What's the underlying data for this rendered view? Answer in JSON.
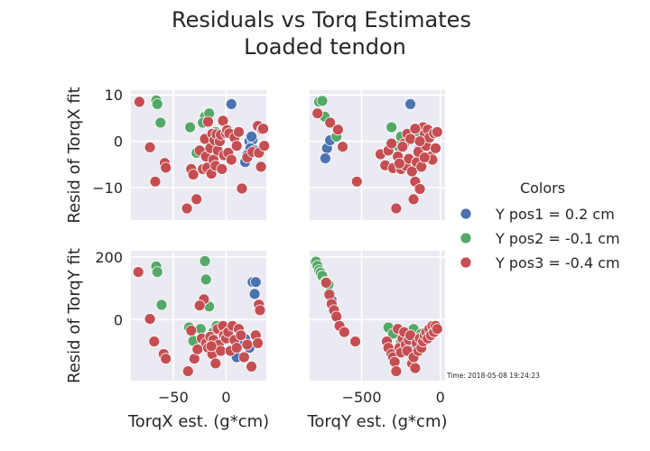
{
  "title_line1": "Residuals vs Torq Estimates",
  "title_line2": "Loaded tendon",
  "timestamp": "Time: 2018-05-08 19:24:23",
  "legend": {
    "title": "Colors",
    "placement": "right"
  },
  "style": {
    "background": "#EAEAF2",
    "grid": "#ffffff",
    "grid_on": true
  },
  "chart_data": [
    {
      "type": "scatter",
      "panel": "top-left",
      "xlabel": "",
      "ylabel": "Resid of TorqX fit",
      "xlim": [
        -90,
        38
      ],
      "ylim": [
        -17,
        11
      ],
      "xticks": [
        -50,
        0
      ],
      "yticks": [
        -10,
        0,
        10
      ],
      "series": [
        {
          "name": "Y pos1 = 0.2 cm",
          "color": "#4C72B0",
          "x": [
            5,
            22,
            25,
            23,
            18,
            20,
            27,
            24
          ],
          "y": [
            8,
            0,
            0.3,
            -1.5,
            -4.5,
            -3,
            -2,
            1
          ]
        },
        {
          "name": "Y pos2 = -0.1 cm",
          "color": "#55A868",
          "x": [
            -66,
            -65,
            -62,
            -20,
            -16,
            -34,
            -28,
            -14,
            -13,
            -10,
            -8,
            -22
          ],
          "y": [
            8.8,
            8,
            4,
            5.3,
            6,
            3,
            -2.5,
            1,
            -1,
            2,
            0,
            4
          ]
        },
        {
          "name": "Y pos3 = -0.4 cm",
          "color": "#C44E52",
          "x": [
            -82,
            -72,
            -67,
            -58,
            -57,
            -37,
            -33,
            -31,
            -28,
            -25,
            -22,
            -20,
            -19,
            -18,
            -17,
            -15,
            -14,
            -13,
            -12,
            -11,
            -10,
            -9,
            -8,
            -6,
            -5,
            -4,
            -3,
            -2,
            0,
            1,
            2,
            3,
            5,
            8,
            10,
            12,
            15,
            20,
            25,
            30,
            31,
            33,
            34,
            35,
            36
          ],
          "y": [
            8.5,
            -1.3,
            -8.7,
            -4.7,
            -5.7,
            -14.5,
            -6,
            -7.2,
            -12.5,
            -2,
            -6,
            0.5,
            -3.3,
            -5.7,
            4.2,
            -1.5,
            -7,
            1.6,
            -4,
            0.2,
            -5.3,
            1.5,
            -2,
            0,
            1.4,
            -6,
            4.4,
            -3,
            1.7,
            2.4,
            -2.5,
            1.7,
            -4,
            0.8,
            -1,
            2,
            -10.2,
            -3.5,
            -2.3,
            3.3,
            -2.5,
            -5.5,
            2.5,
            2.7,
            -1
          ]
        }
      ]
    },
    {
      "type": "scatter",
      "panel": "top-right",
      "xlabel": "",
      "ylabel": "",
      "xlim": [
        -830,
        30
      ],
      "ylim": [
        -17,
        11
      ],
      "xticks": [
        -500,
        0
      ],
      "yticks": [
        -10,
        0,
        10
      ],
      "series": [
        {
          "name": "Y pos1 = 0.2 cm",
          "color": "#4C72B0",
          "x": [
            -190,
            -720,
            -730,
            -700,
            -230,
            -100,
            -140
          ],
          "y": [
            8,
            -1.5,
            -3.7,
            0.2,
            0.3,
            0.5,
            -2
          ]
        },
        {
          "name": "Y pos2 = -0.1 cm",
          "color": "#55A868",
          "x": [
            -770,
            -750,
            -735,
            -660,
            -310,
            -120,
            -80,
            -190,
            -270,
            -330,
            -150,
            -250
          ],
          "y": [
            8.5,
            8.7,
            5.3,
            1,
            3,
            3,
            2.5,
            0.3,
            -1,
            -2,
            2.2,
            1
          ]
        },
        {
          "name": "Y pos3 = -0.4 cm",
          "color": "#C44E52",
          "x": [
            -780,
            -700,
            -650,
            -620,
            -530,
            -380,
            -350,
            -330,
            -300,
            -280,
            -270,
            -250,
            -230,
            -220,
            -210,
            -200,
            -190,
            -180,
            -170,
            -160,
            -150,
            -140,
            -130,
            -120,
            -110,
            -100,
            -90,
            -80,
            -70,
            -60,
            -50,
            -40,
            -30,
            -20,
            -310,
            -260,
            -240,
            -160,
            -130,
            -100
          ],
          "y": [
            6,
            4,
            2.5,
            -1.2,
            -8.7,
            -2.8,
            -5.2,
            -2,
            -5.8,
            -14.5,
            -3.3,
            -6,
            -0.5,
            -5.3,
            1.6,
            -3.8,
            0.5,
            -6.5,
            -12.5,
            -8.7,
            -4.5,
            -2.3,
            -10.3,
            -5.5,
            3,
            1.5,
            -1,
            2.5,
            0.8,
            -3.3,
            -4,
            1.7,
            -1.5,
            2,
            -0.5,
            -4.8,
            -1.2,
            2.7,
            0,
            -3.5
          ]
        }
      ]
    },
    {
      "type": "scatter",
      "panel": "bottom-left",
      "xlabel": "TorqX est. (g*cm)",
      "ylabel": "Resid of TorqY fit",
      "xlim": [
        -90,
        38
      ],
      "ylim": [
        -195,
        220
      ],
      "xticks": [
        -50,
        0
      ],
      "yticks": [
        0,
        200
      ],
      "series": [
        {
          "name": "Y pos1 = 0.2 cm",
          "color": "#4C72B0",
          "x": [
            25,
            28,
            27,
            18,
            22,
            10,
            14
          ],
          "y": [
            120,
            120,
            82,
            -62,
            -90,
            -120,
            -70
          ]
        },
        {
          "name": "Y pos2 = -0.1 cm",
          "color": "#55A868",
          "x": [
            -66,
            -65,
            -61,
            -20,
            -19,
            -16,
            -35,
            -31,
            -24,
            -12,
            -9,
            -7
          ],
          "y": [
            170,
            152,
            47,
            187,
            128,
            42,
            -25,
            -68,
            -30,
            -40,
            -20,
            -30
          ]
        },
        {
          "name": "Y pos3 = -0.4 cm",
          "color": "#C44E52",
          "x": [
            -83,
            -72,
            -68,
            -59,
            -57,
            -36,
            -33,
            -30,
            -27,
            -23,
            -21,
            -19,
            -17,
            -15,
            -13,
            -12,
            -10,
            -8,
            -7,
            -5,
            -3,
            -2,
            0,
            2,
            4,
            6,
            8,
            10,
            12,
            14,
            17,
            20,
            24,
            28,
            30,
            31,
            32,
            -25,
            -14
          ],
          "y": [
            152,
            2,
            -70,
            -110,
            -125,
            -165,
            -35,
            -125,
            -95,
            -60,
            65,
            -75,
            -90,
            -55,
            -110,
            -65,
            -140,
            -30,
            -80,
            -100,
            -20,
            -50,
            -60,
            -40,
            -100,
            -20,
            -65,
            -90,
            -30,
            -50,
            -120,
            -80,
            -150,
            -50,
            -75,
            48,
            30,
            45,
            -85
          ]
        }
      ]
    },
    {
      "type": "scatter",
      "panel": "bottom-right",
      "xlabel": "TorqY est. (g*cm)",
      "ylabel": "",
      "xlim": [
        -830,
        30
      ],
      "ylim": [
        -195,
        220
      ],
      "xticks": [
        -500,
        0
      ],
      "yticks": [
        0,
        200
      ],
      "series": [
        {
          "name": "Y pos1 = 0.2 cm",
          "color": "#4C72B0",
          "x": [
            -700,
            -690,
            -170,
            -200
          ],
          "y": [
            82,
            62,
            -120,
            -80
          ]
        },
        {
          "name": "Y pos2 = -0.1 cm",
          "color": "#55A868",
          "x": [
            -790,
            -780,
            -770,
            -760,
            -750,
            -730,
            -710,
            -330,
            -300,
            -250,
            -210,
            -170,
            -120,
            -80,
            -60,
            -30
          ],
          "y": [
            185,
            172,
            158,
            150,
            140,
            120,
            112,
            -25,
            -45,
            -70,
            -40,
            -30,
            -45,
            -40,
            -30,
            -20
          ]
        },
        {
          "name": "Y pos3 = -0.4 cm",
          "color": "#C44E52",
          "x": [
            -725,
            -705,
            -690,
            -675,
            -660,
            -640,
            -610,
            -540,
            -340,
            -330,
            -310,
            -300,
            -290,
            -280,
            -270,
            -260,
            -250,
            -240,
            -230,
            -220,
            -210,
            -200,
            -190,
            -180,
            -170,
            -160,
            -150,
            -140,
            -130,
            -120,
            -110,
            -100,
            -90,
            -80,
            -70,
            -60,
            -50,
            -40,
            -30,
            -20
          ],
          "y": [
            118,
            80,
            50,
            30,
            10,
            -20,
            -40,
            -70,
            -70,
            -90,
            -110,
            -120,
            -135,
            -165,
            -30,
            -90,
            -105,
            -60,
            -40,
            -80,
            -100,
            -65,
            -50,
            -140,
            -120,
            -155,
            -75,
            -100,
            -60,
            -90,
            -70,
            -50,
            -40,
            -60,
            -30,
            -50,
            -20,
            -40,
            -20,
            -30
          ]
        }
      ]
    }
  ]
}
